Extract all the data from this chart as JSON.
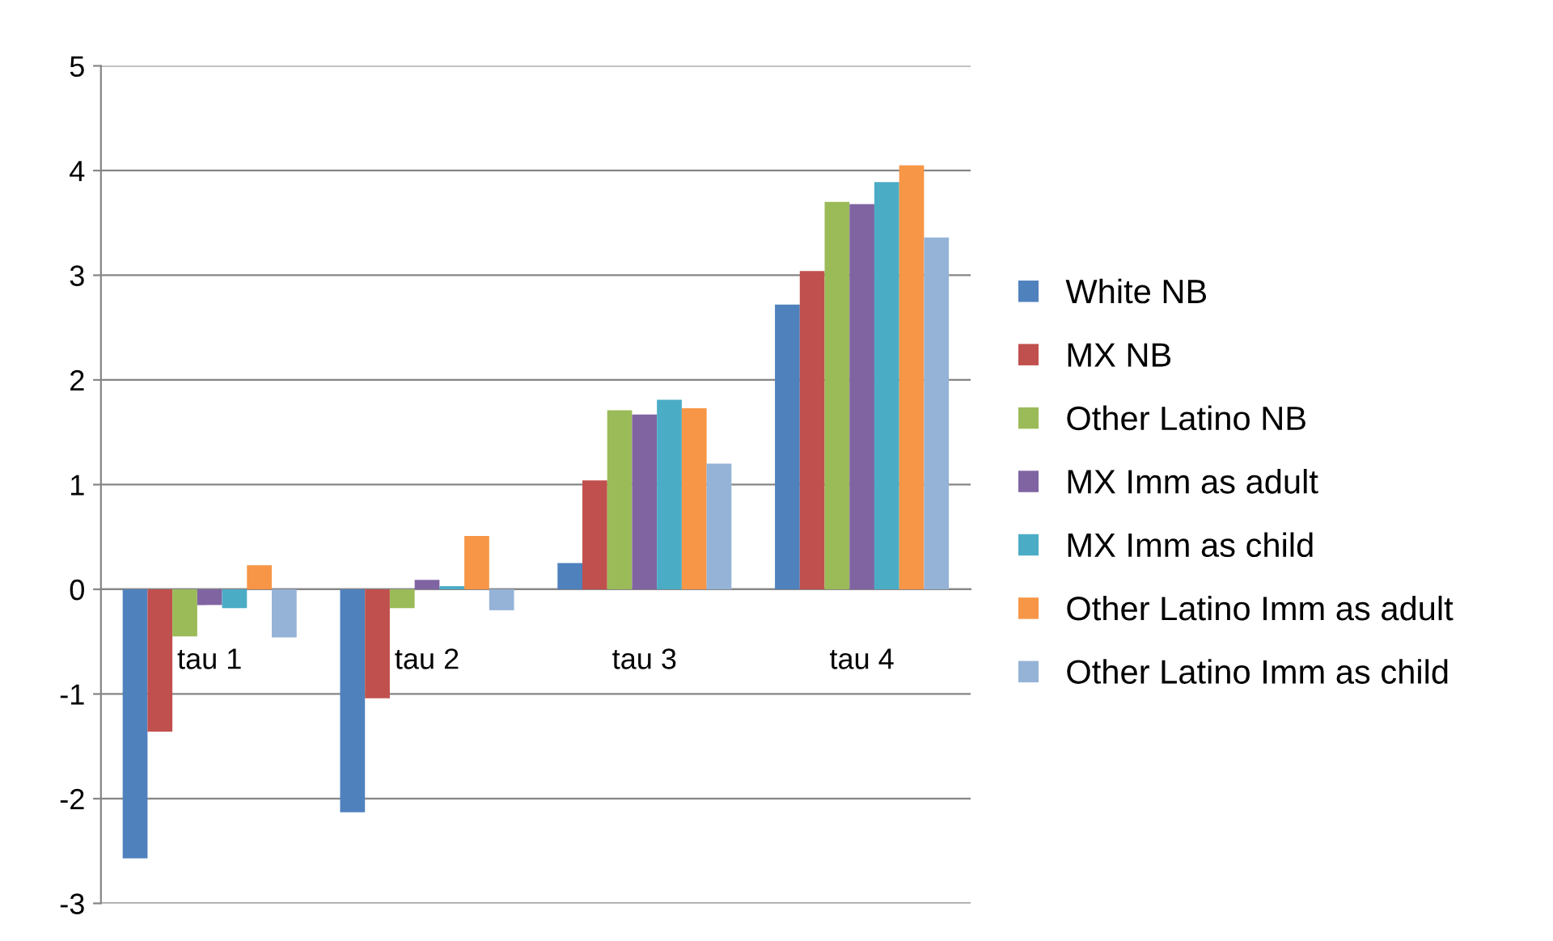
{
  "chart_data": {
    "type": "bar",
    "categories": [
      "tau 1",
      "tau 2",
      "tau 3",
      "tau 4"
    ],
    "series": [
      {
        "name": "White NB",
        "color": "#4f81bd",
        "values": [
          -2.57,
          -2.13,
          0.25,
          2.72
        ]
      },
      {
        "name": "MX NB",
        "color": "#c0504d",
        "values": [
          -1.36,
          -1.04,
          1.04,
          3.04
        ]
      },
      {
        "name": "Other Latino NB",
        "color": "#9bbb59",
        "values": [
          -0.45,
          -0.18,
          1.71,
          3.7
        ]
      },
      {
        "name": "MX Imm as adult",
        "color": "#8064a2",
        "values": [
          -0.15,
          0.09,
          1.67,
          3.68
        ]
      },
      {
        "name": "MX Imm as child",
        "color": "#4bacc6",
        "values": [
          -0.18,
          0.03,
          1.81,
          3.89
        ]
      },
      {
        "name": "Other Latino Imm as adult",
        "color": "#f79646",
        "values": [
          0.23,
          0.51,
          1.73,
          4.05
        ]
      },
      {
        "name": "Other Latino Imm as child",
        "color": "#95b3d7",
        "values": [
          -0.46,
          -0.2,
          1.2,
          3.36
        ]
      }
    ],
    "ylim": [
      -3,
      5
    ],
    "yticks": [
      -3,
      -2,
      -1,
      0,
      1,
      2,
      3,
      4,
      5
    ],
    "grid": "y",
    "legend": "right"
  }
}
